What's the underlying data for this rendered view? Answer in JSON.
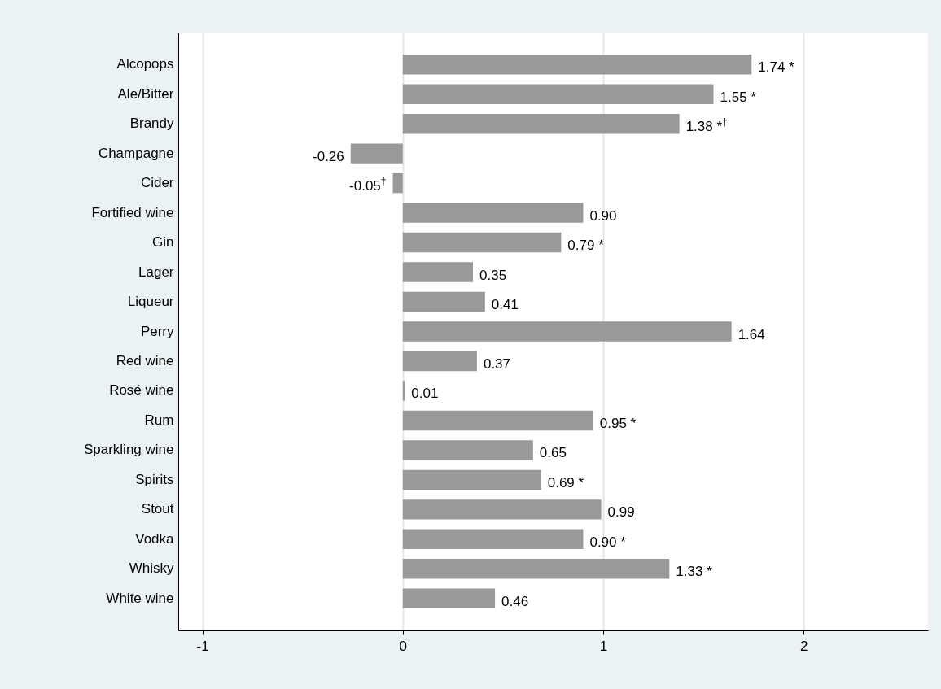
{
  "chart_data": {
    "type": "bar",
    "orientation": "horizontal",
    "color": "#999999",
    "categories": [
      "Alcopops",
      "Ale/Bitter",
      "Brandy",
      "Champagne",
      "Cider",
      "Fortified wine",
      "Gin",
      "Lager",
      "Liqueur",
      "Perry",
      "Red wine",
      "Rosé wine",
      "Rum",
      "Sparkling wine",
      "Spirits",
      "Stout",
      "Vodka",
      "Whisky",
      "White wine"
    ],
    "values": [
      1.74,
      1.55,
      1.38,
      -0.26,
      -0.05,
      0.9,
      0.79,
      0.35,
      0.41,
      1.64,
      0.37,
      0.01,
      0.95,
      0.65,
      0.69,
      0.99,
      0.9,
      1.33,
      0.46
    ],
    "value_labels": [
      "1.74 *",
      "1.55 *",
      "1.38 *$^{†}$",
      "-0.26",
      "-0.05$^{†}$",
      "0.90",
      "0.79 *",
      "0.35",
      "0.41",
      "1.64",
      "0.37",
      "0.01",
      "0.95 *",
      "0.65",
      "0.69 *",
      "0.99",
      "0.90 *",
      "1.33 *",
      "0.46"
    ],
    "xlim": [
      -1.12,
      2.62
    ],
    "xticks": [
      -1,
      0,
      1,
      2
    ],
    "grid": "x"
  }
}
